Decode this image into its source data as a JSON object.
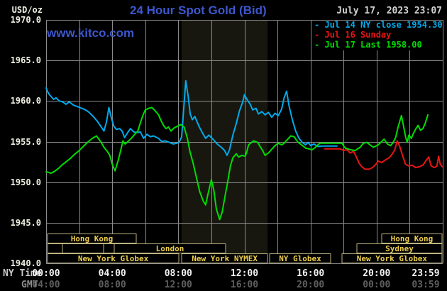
{
  "header": {
    "title": "24 Hour Spot Gold (Bid)",
    "datetime": "July 17, 2023 23:07",
    "watermark": "www.kitco.com",
    "y_unit": "USD/oz"
  },
  "colors": {
    "background": "#000000",
    "grid": "#8A8A8A",
    "band": "#17170F",
    "title_blue": "#3D57CE",
    "date_text": "#D2D2D2",
    "axis_text": "#EFEFE2",
    "cyan": "#00AAEC",
    "red": "#E81414",
    "green": "#00DC00",
    "session_border": "#BCB27E",
    "session_text": "#ECCE4E",
    "time_text": "#F2F2F2",
    "time_label": "#C8C8C8",
    "gmt_label": "#8E8E8E",
    "gmt_text": "#5E5E5E"
  },
  "legend": {
    "items": [
      {
        "id": "jul14",
        "label": "- Jul 14 NY close 1954.30",
        "color": "#00AAEC"
      },
      {
        "id": "jul16",
        "label": "- Jul 16 Sunday",
        "color": "#E81414"
      },
      {
        "id": "jul17",
        "label": "- Jul 17 Last 1958.00",
        "color": "#00DC00"
      }
    ]
  },
  "axes": {
    "y_labels": [
      {
        "text": "1970.0",
        "value": 1970
      },
      {
        "text": "1965.0",
        "value": 1965
      },
      {
        "text": "1960.0",
        "value": 1960
      },
      {
        "text": "1955.0",
        "value": 1955
      },
      {
        "text": "1950.0",
        "value": 1950
      },
      {
        "text": "1945.0",
        "value": 1945
      },
      {
        "text": "1940.0",
        "value": 1940
      }
    ],
    "x_rows": [
      {
        "label": "NY Time",
        "ticks": [
          {
            "text": "00:00",
            "hour": 0
          },
          {
            "text": "04:00",
            "hour": 4
          },
          {
            "text": "08:00",
            "hour": 8
          },
          {
            "text": "12:00",
            "hour": 12
          },
          {
            "text": "16:00",
            "hour": 16
          },
          {
            "text": "20:00",
            "hour": 20
          },
          {
            "text": "23:59",
            "hour": 22.97
          }
        ]
      },
      {
        "label": "GMT",
        "ticks": [
          {
            "text": "04:00",
            "hour": 0
          },
          {
            "text": "08:00",
            "hour": 4
          },
          {
            "text": "12:00",
            "hour": 8
          },
          {
            "text": "16:00",
            "hour": 12
          },
          {
            "text": "20:00",
            "hour": 16
          },
          {
            "text": "00:00",
            "hour": 20
          },
          {
            "text": "03:59",
            "hour": 22.97
          }
        ]
      }
    ]
  },
  "sessions": {
    "rows": [
      [
        {
          "label": "Hong Kong",
          "start": 0.09,
          "end": 5.45
        },
        {
          "label": "Hong Kong",
          "start": 20.31,
          "end": 23.95
        }
      ],
      [
        {
          "label": "",
          "start": 0.09,
          "end": 0.99
        },
        {
          "label": "",
          "start": 0.99,
          "end": 3.48
        },
        {
          "label": "",
          "start": 3.48,
          "end": 4.12
        },
        {
          "label": "London",
          "start": 4.12,
          "end": 10.86
        },
        {
          "label": "Sydney",
          "start": 18.81,
          "end": 23.95
        }
      ],
      [
        {
          "label": "New York Globex",
          "start": 0.09,
          "end": 8.03
        },
        {
          "label": "New York NYMEX",
          "start": 8.2,
          "end": 13.4
        },
        {
          "label": "NY Globex",
          "start": 13.52,
          "end": 17.22
        },
        {
          "label": "New York Globex",
          "start": 17.9,
          "end": 23.95
        }
      ]
    ]
  },
  "chart_data": {
    "type": "line",
    "title": "24 Hour Spot Gold (Bid)",
    "ylabel": "USD/oz",
    "ylim": [
      1940,
      1970
    ],
    "xlim_hours": [
      0,
      24
    ],
    "y_gridline_step": 5,
    "x_gridline_step_hours": 2,
    "shaded_band_hours": [
      8.2,
      13.4
    ],
    "legend_position": "top-right",
    "series": [
      {
        "name": "Jul 14 NY close 1954.30",
        "color": "#00AAEC",
        "points": [
          [
            0,
            1961.6
          ],
          [
            0.15,
            1960.9
          ],
          [
            0.45,
            1960.2
          ],
          [
            0.6,
            1960.4
          ],
          [
            0.8,
            1960.0
          ],
          [
            1.0,
            1959.9
          ],
          [
            1.2,
            1959.6
          ],
          [
            1.4,
            1959.9
          ],
          [
            1.65,
            1959.5
          ],
          [
            1.9,
            1959.3
          ],
          [
            2.15,
            1959.1
          ],
          [
            2.4,
            1958.9
          ],
          [
            2.6,
            1958.6
          ],
          [
            2.85,
            1958.1
          ],
          [
            3.1,
            1957.5
          ],
          [
            3.3,
            1956.9
          ],
          [
            3.5,
            1956.3
          ],
          [
            3.65,
            1957.4
          ],
          [
            3.8,
            1959.2
          ],
          [
            3.95,
            1957.9
          ],
          [
            4.1,
            1956.9
          ],
          [
            4.25,
            1956.5
          ],
          [
            4.45,
            1956.6
          ],
          [
            4.6,
            1956.3
          ],
          [
            4.75,
            1955.5
          ],
          [
            4.9,
            1956.0
          ],
          [
            5.1,
            1956.6
          ],
          [
            5.3,
            1956.2
          ],
          [
            5.5,
            1956.1
          ],
          [
            5.7,
            1956.2
          ],
          [
            5.9,
            1955.4
          ],
          [
            6.1,
            1955.9
          ],
          [
            6.3,
            1955.6
          ],
          [
            6.5,
            1955.7
          ],
          [
            6.8,
            1955.4
          ],
          [
            7.0,
            1955.0
          ],
          [
            7.2,
            1955.1
          ],
          [
            7.45,
            1954.9
          ],
          [
            7.7,
            1954.7
          ],
          [
            7.9,
            1954.8
          ],
          [
            8.05,
            1954.9
          ],
          [
            8.2,
            1955.6
          ],
          [
            8.3,
            1958.3
          ],
          [
            8.45,
            1962.5
          ],
          [
            8.6,
            1960.5
          ],
          [
            8.72,
            1958.4
          ],
          [
            8.85,
            1957.7
          ],
          [
            9.0,
            1958.1
          ],
          [
            9.25,
            1956.9
          ],
          [
            9.45,
            1956.1
          ],
          [
            9.65,
            1955.4
          ],
          [
            9.85,
            1955.8
          ],
          [
            10.1,
            1955.3
          ],
          [
            10.35,
            1954.7
          ],
          [
            10.6,
            1954.3
          ],
          [
            10.8,
            1953.9
          ],
          [
            10.95,
            1953.3
          ],
          [
            11.1,
            1954.0
          ],
          [
            11.3,
            1955.8
          ],
          [
            11.5,
            1957.2
          ],
          [
            11.7,
            1958.8
          ],
          [
            11.9,
            1959.9
          ],
          [
            12.0,
            1960.8
          ],
          [
            12.15,
            1960.2
          ],
          [
            12.35,
            1959.6
          ],
          [
            12.5,
            1958.9
          ],
          [
            12.7,
            1959.1
          ],
          [
            12.85,
            1958.4
          ],
          [
            13.05,
            1958.7
          ],
          [
            13.25,
            1958.3
          ],
          [
            13.45,
            1958.6
          ],
          [
            13.65,
            1958.0
          ],
          [
            13.85,
            1958.5
          ],
          [
            14.05,
            1958.2
          ],
          [
            14.25,
            1959.0
          ],
          [
            14.4,
            1960.4
          ],
          [
            14.55,
            1961.2
          ],
          [
            14.7,
            1959.4
          ],
          [
            14.9,
            1957.7
          ],
          [
            15.1,
            1956.3
          ],
          [
            15.3,
            1955.4
          ],
          [
            15.5,
            1954.9
          ],
          [
            15.7,
            1954.6
          ],
          [
            15.85,
            1954.9
          ],
          [
            16.0,
            1954.5
          ],
          [
            16.2,
            1954.7
          ],
          [
            16.45,
            1954.4
          ],
          [
            16.7,
            1954.45
          ],
          [
            17.6,
            1954.45
          ]
        ]
      },
      {
        "name": "Jul 16 Sunday",
        "color": "#E81414",
        "points": [
          [
            16.85,
            1954.1
          ],
          [
            17.8,
            1954.1
          ],
          [
            18.0,
            1953.9
          ],
          [
            18.2,
            1954.0
          ],
          [
            18.4,
            1953.6
          ],
          [
            18.6,
            1953.8
          ],
          [
            18.75,
            1953.2
          ],
          [
            18.95,
            1952.3
          ],
          [
            19.1,
            1951.9
          ],
          [
            19.3,
            1951.6
          ],
          [
            19.55,
            1951.6
          ],
          [
            19.75,
            1951.8
          ],
          [
            19.95,
            1952.2
          ],
          [
            20.1,
            1952.6
          ],
          [
            20.3,
            1952.4
          ],
          [
            20.5,
            1952.7
          ],
          [
            20.75,
            1953.0
          ],
          [
            20.95,
            1953.5
          ],
          [
            21.1,
            1954.0
          ],
          [
            21.25,
            1955.1
          ],
          [
            21.4,
            1954.4
          ],
          [
            21.55,
            1953.4
          ],
          [
            21.75,
            1952.2
          ],
          [
            21.95,
            1952.0
          ],
          [
            22.15,
            1952.1
          ],
          [
            22.35,
            1951.8
          ],
          [
            22.6,
            1951.9
          ],
          [
            22.8,
            1952.1
          ],
          [
            23.0,
            1952.7
          ],
          [
            23.15,
            1953.1
          ],
          [
            23.3,
            1952.0
          ],
          [
            23.5,
            1951.8
          ],
          [
            23.65,
            1952.0
          ],
          [
            23.75,
            1953.2
          ],
          [
            23.85,
            1952.2
          ],
          [
            23.97,
            1951.9
          ]
        ]
      },
      {
        "name": "Jul 17 Last 1958.00",
        "color": "#00DC00",
        "points": [
          [
            0,
            1951.3
          ],
          [
            0.3,
            1951.1
          ],
          [
            0.55,
            1951.4
          ],
          [
            0.75,
            1951.7
          ],
          [
            0.95,
            1952.1
          ],
          [
            1.2,
            1952.5
          ],
          [
            1.45,
            1952.9
          ],
          [
            1.7,
            1953.4
          ],
          [
            1.95,
            1953.8
          ],
          [
            2.2,
            1954.3
          ],
          [
            2.5,
            1954.9
          ],
          [
            2.8,
            1955.4
          ],
          [
            3.05,
            1955.7
          ],
          [
            3.3,
            1955.0
          ],
          [
            3.5,
            1954.3
          ],
          [
            3.7,
            1953.8
          ],
          [
            3.85,
            1953.3
          ],
          [
            4.0,
            1952.2
          ],
          [
            4.17,
            1951.4
          ],
          [
            4.35,
            1952.6
          ],
          [
            4.5,
            1953.8
          ],
          [
            4.65,
            1955.1
          ],
          [
            4.78,
            1954.7
          ],
          [
            4.95,
            1955.0
          ],
          [
            5.2,
            1955.5
          ],
          [
            5.4,
            1956.0
          ],
          [
            5.55,
            1956.3
          ],
          [
            5.7,
            1957.3
          ],
          [
            5.85,
            1958.2
          ],
          [
            6.0,
            1958.9
          ],
          [
            6.2,
            1959.1
          ],
          [
            6.4,
            1959.2
          ],
          [
            6.6,
            1958.8
          ],
          [
            6.8,
            1958.3
          ],
          [
            6.95,
            1957.6
          ],
          [
            7.1,
            1957.0
          ],
          [
            7.25,
            1956.6
          ],
          [
            7.4,
            1956.8
          ],
          [
            7.55,
            1956.3
          ],
          [
            7.75,
            1956.7
          ],
          [
            7.95,
            1956.9
          ],
          [
            8.15,
            1957.1
          ],
          [
            8.35,
            1956.8
          ],
          [
            8.55,
            1955.4
          ],
          [
            8.7,
            1953.8
          ],
          [
            8.9,
            1952.3
          ],
          [
            9.1,
            1950.5
          ],
          [
            9.3,
            1948.8
          ],
          [
            9.5,
            1947.7
          ],
          [
            9.65,
            1947.2
          ],
          [
            9.8,
            1948.6
          ],
          [
            10.0,
            1950.3
          ],
          [
            10.15,
            1949.0
          ],
          [
            10.3,
            1946.7
          ],
          [
            10.5,
            1945.4
          ],
          [
            10.65,
            1946.3
          ],
          [
            10.8,
            1948.0
          ],
          [
            11.0,
            1950.2
          ],
          [
            11.15,
            1952.0
          ],
          [
            11.3,
            1953.0
          ],
          [
            11.5,
            1953.5
          ],
          [
            11.65,
            1953.1
          ],
          [
            11.85,
            1953.3
          ],
          [
            12.05,
            1953.2
          ],
          [
            12.15,
            1953.8
          ],
          [
            12.25,
            1954.6
          ],
          [
            12.55,
            1955.1
          ],
          [
            12.8,
            1954.9
          ],
          [
            13.1,
            1953.9
          ],
          [
            13.25,
            1953.3
          ],
          [
            13.45,
            1953.6
          ],
          [
            13.85,
            1954.5
          ],
          [
            14.05,
            1954.8
          ],
          [
            14.26,
            1954.6
          ],
          [
            14.4,
            1954.8
          ],
          [
            14.8,
            1955.7
          ],
          [
            15.0,
            1955.6
          ],
          [
            15.25,
            1954.9
          ],
          [
            15.45,
            1954.6
          ],
          [
            15.7,
            1954.2
          ],
          [
            16.1,
            1954.0
          ],
          [
            16.3,
            1954.3
          ],
          [
            16.55,
            1954.8
          ],
          [
            17.9,
            1954.8
          ],
          [
            18.1,
            1954.2
          ],
          [
            18.4,
            1954.0
          ],
          [
            18.7,
            1953.9
          ],
          [
            19.0,
            1954.3
          ],
          [
            19.2,
            1954.8
          ],
          [
            19.4,
            1954.9
          ],
          [
            19.6,
            1954.6
          ],
          [
            19.8,
            1954.3
          ],
          [
            20.1,
            1954.6
          ],
          [
            20.3,
            1955.0
          ],
          [
            20.45,
            1955.3
          ],
          [
            20.65,
            1954.7
          ],
          [
            20.85,
            1954.5
          ],
          [
            21.0,
            1954.9
          ],
          [
            21.15,
            1955.5
          ],
          [
            21.3,
            1956.8
          ],
          [
            21.5,
            1958.2
          ],
          [
            21.6,
            1957.2
          ],
          [
            21.75,
            1955.6
          ],
          [
            21.85,
            1954.9
          ],
          [
            21.95,
            1955.8
          ],
          [
            22.1,
            1955.4
          ],
          [
            22.2,
            1955.9
          ],
          [
            22.35,
            1956.5
          ],
          [
            22.5,
            1957.0
          ],
          [
            22.65,
            1956.4
          ],
          [
            22.8,
            1956.6
          ],
          [
            22.95,
            1957.3
          ],
          [
            23.1,
            1958.3
          ]
        ]
      }
    ]
  }
}
